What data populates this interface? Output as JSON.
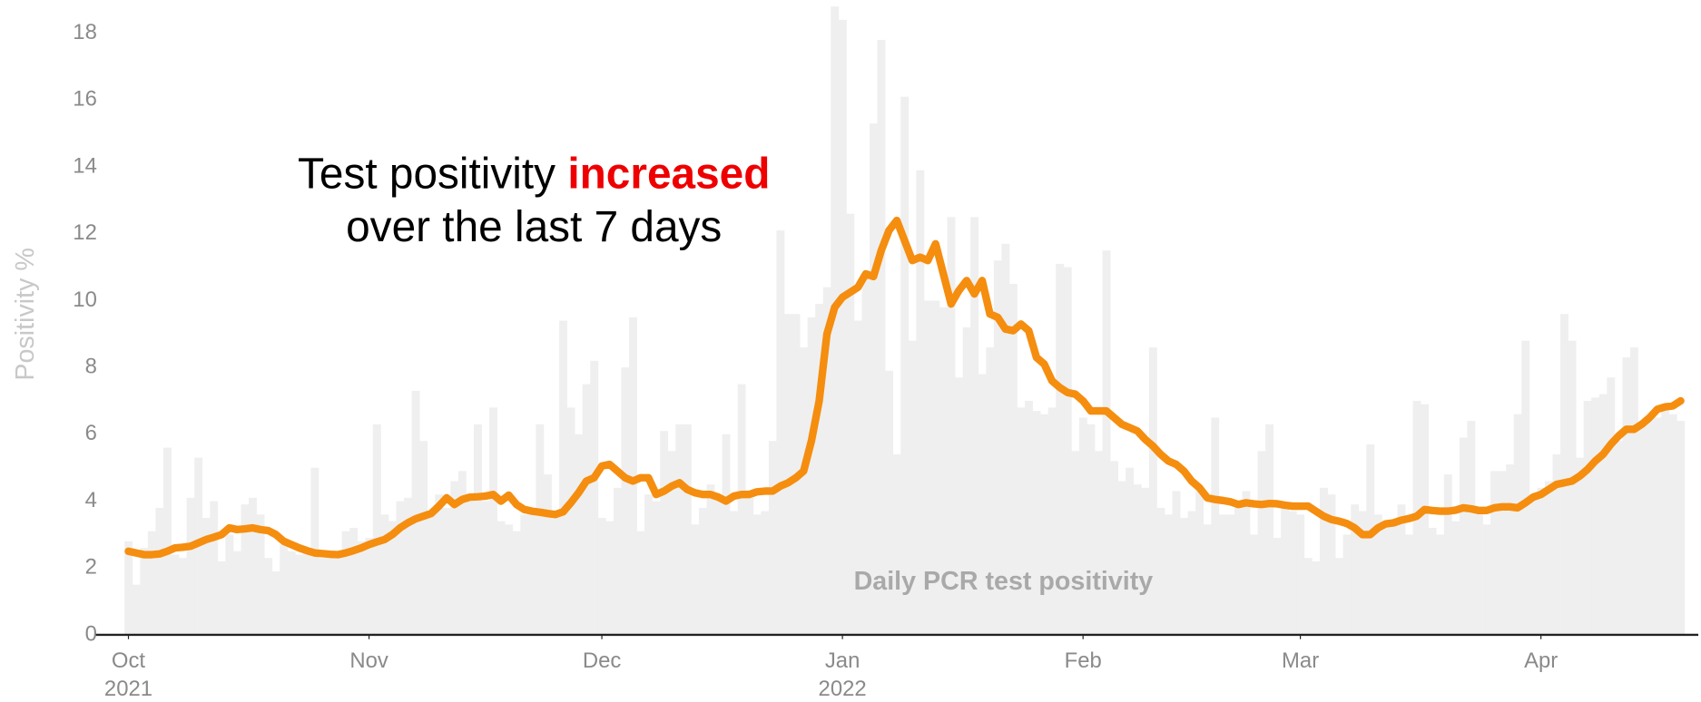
{
  "chart_data": {
    "type": "bar-line",
    "ylabel": "Positivity %",
    "annotation": {
      "line1": "Test positivity",
      "highlight": "increased",
      "line2": "over the last 7 days"
    },
    "x": [
      0,
      1,
      2,
      3,
      4,
      5,
      6,
      7,
      8,
      9,
      10,
      11,
      12,
      13,
      14,
      15,
      16,
      17,
      18,
      19,
      20,
      21,
      22,
      23,
      24,
      25,
      26,
      27,
      28,
      29,
      30,
      31,
      32,
      33,
      34,
      35,
      36,
      37,
      38,
      39,
      40,
      41,
      42,
      43,
      44,
      45,
      46,
      47,
      48,
      49,
      50,
      51,
      52,
      53,
      54,
      55,
      56,
      57,
      58,
      59,
      60,
      61,
      62,
      63,
      64,
      65,
      66,
      67,
      68,
      69,
      70,
      71,
      72,
      73,
      74,
      75,
      76,
      77,
      78,
      79,
      80,
      81,
      82,
      83,
      84,
      85,
      86,
      87,
      88,
      89,
      90,
      91,
      92,
      93,
      94,
      95,
      96,
      97,
      98,
      99,
      100,
      101,
      102,
      103,
      104,
      105,
      106,
      107,
      108,
      109,
      110,
      111,
      112,
      113,
      114,
      115,
      116,
      117,
      118,
      119,
      120,
      121,
      122,
      123,
      124,
      125,
      126,
      127,
      128,
      129,
      130,
      131,
      132,
      133,
      134,
      135,
      136,
      137,
      138,
      139,
      140,
      141,
      142,
      143,
      144,
      145,
      146,
      147,
      148,
      149,
      150,
      151,
      152,
      153,
      154,
      155,
      156,
      157,
      158,
      159,
      160,
      161,
      162,
      163,
      164,
      165,
      166,
      167,
      168,
      169,
      170,
      171,
      172,
      173,
      174,
      175,
      176,
      177,
      178,
      179,
      180,
      181,
      182,
      183,
      184,
      185,
      186,
      187,
      188,
      189,
      190,
      191,
      192,
      193,
      194,
      195,
      196,
      197,
      198,
      199,
      200
    ],
    "series": [
      {
        "name": "Daily PCR test positivity",
        "kind": "bar",
        "color": "#efefef",
        "values": [
          2.8,
          1.5,
          2.6,
          3.1,
          3.8,
          5.6,
          2.4,
          2.3,
          4.1,
          5.3,
          3.5,
          4.0,
          2.2,
          3.0,
          2.5,
          3.9,
          4.1,
          3.6,
          2.3,
          1.9,
          2.7,
          2.5,
          2.4,
          2.6,
          5.0,
          2.3,
          2.3,
          2.5,
          3.1,
          3.2,
          2.8,
          2.9,
          6.3,
          3.6,
          3.4,
          4.0,
          4.1,
          7.3,
          5.8,
          3.6,
          4.2,
          3.8,
          4.6,
          4.9,
          4.1,
          6.3,
          4.0,
          6.8,
          3.4,
          3.3,
          3.1,
          3.6,
          3.8,
          6.3,
          4.8,
          3.6,
          9.4,
          6.8,
          6.0,
          7.5,
          8.2,
          3.5,
          3.4,
          4.4,
          8.0,
          9.5,
          3.1,
          4.2,
          4.0,
          6.1,
          5.5,
          6.3,
          6.3,
          3.3,
          3.8,
          4.5,
          4.1,
          6.0,
          3.7,
          7.5,
          4.1,
          3.6,
          3.7,
          5.8,
          12.1,
          9.6,
          9.6,
          8.6,
          9.5,
          9.9,
          10.4,
          18.8,
          18.4,
          12.6,
          9.4,
          10.8,
          15.3,
          17.8,
          7.9,
          5.4,
          16.1,
          8.8,
          13.9,
          10.0,
          10.0,
          9.8,
          12.5,
          7.7,
          9.2,
          12.5,
          7.8,
          8.6,
          11.2,
          11.7,
          10.5,
          6.8,
          7.0,
          6.7,
          6.6,
          6.8,
          11.1,
          11.0,
          5.5,
          6.5,
          6.3,
          5.5,
          11.5,
          5.2,
          4.6,
          5.0,
          4.5,
          4.4,
          8.6,
          3.8,
          3.6,
          4.3,
          3.5,
          3.7,
          4.4,
          3.3,
          6.5,
          3.6,
          3.6,
          3.9,
          4.3,
          3.0,
          5.5,
          6.3,
          2.9,
          3.9,
          3.7,
          3.6,
          2.3,
          2.2,
          4.4,
          4.2,
          2.3,
          3.0,
          3.9,
          3.7,
          5.7,
          3.6,
          3.3,
          3.4,
          3.9,
          3.0,
          7.0,
          6.9,
          3.2,
          3.0,
          4.8,
          3.4,
          5.9,
          6.4,
          3.8,
          3.3,
          4.9,
          4.9,
          5.1,
          6.6,
          8.8,
          4.1,
          4.4,
          4.6,
          5.4,
          9.6,
          8.8,
          5.3,
          7.0,
          7.1,
          7.2,
          7.7,
          5.8,
          8.3,
          8.6,
          6.4,
          6.4,
          6.5,
          6.8,
          6.6,
          6.4
        ]
      },
      {
        "kind": "line",
        "color": "#f58d0f",
        "values": [
          2.5,
          2.45,
          2.4,
          2.4,
          2.42,
          2.5,
          2.6,
          2.62,
          2.65,
          2.75,
          2.85,
          2.92,
          3.0,
          3.2,
          3.15,
          3.17,
          3.2,
          3.15,
          3.12,
          3.0,
          2.8,
          2.7,
          2.6,
          2.52,
          2.45,
          2.43,
          2.41,
          2.4,
          2.45,
          2.52,
          2.6,
          2.7,
          2.78,
          2.85,
          3.0,
          3.2,
          3.35,
          3.47,
          3.55,
          3.63,
          3.85,
          4.1,
          3.9,
          4.05,
          4.12,
          4.13,
          4.15,
          4.2,
          4.0,
          4.18,
          3.9,
          3.75,
          3.7,
          3.67,
          3.63,
          3.6,
          3.68,
          3.95,
          4.25,
          4.6,
          4.7,
          5.05,
          5.1,
          4.9,
          4.7,
          4.6,
          4.7,
          4.7,
          4.2,
          4.3,
          4.45,
          4.55,
          4.35,
          4.25,
          4.2,
          4.2,
          4.12,
          4.0,
          4.15,
          4.2,
          4.2,
          4.28,
          4.3,
          4.3,
          4.45,
          4.55,
          4.7,
          4.9,
          5.8,
          7.0,
          9.0,
          9.8,
          10.1,
          10.25,
          10.4,
          10.8,
          10.72,
          11.5,
          12.1,
          12.4,
          11.8,
          11.2,
          11.3,
          11.2,
          11.7,
          10.8,
          9.9,
          10.3,
          10.6,
          10.2,
          10.6,
          9.6,
          9.5,
          9.15,
          9.1,
          9.3,
          9.1,
          8.3,
          8.1,
          7.6,
          7.4,
          7.25,
          7.2,
          7.0,
          6.7,
          6.7,
          6.7,
          6.5,
          6.3,
          6.2,
          6.1,
          5.85,
          5.65,
          5.4,
          5.2,
          5.1,
          4.9,
          4.6,
          4.4,
          4.1,
          4.05,
          4.02,
          3.98,
          3.9,
          3.95,
          3.92,
          3.9,
          3.93,
          3.92,
          3.88,
          3.85,
          3.85,
          3.85,
          3.7,
          3.55,
          3.45,
          3.4,
          3.33,
          3.2,
          3.0,
          3.0,
          3.2,
          3.32,
          3.35,
          3.43,
          3.48,
          3.55,
          3.75,
          3.72,
          3.7,
          3.7,
          3.73,
          3.8,
          3.77,
          3.72,
          3.72,
          3.8,
          3.83,
          3.83,
          3.8,
          3.95,
          4.12,
          4.2,
          4.35,
          4.5,
          4.55,
          4.6,
          4.75,
          4.95,
          5.2,
          5.4,
          5.7,
          5.95,
          6.15,
          6.15,
          6.3,
          6.5,
          6.75,
          6.82,
          6.85,
          7.0
        ]
      }
    ],
    "xlim": [
      0,
      202
    ],
    "xticks": [
      {
        "value": 0,
        "label": "Oct"
      },
      {
        "value": 31,
        "label": "Nov"
      },
      {
        "value": 61,
        "label": "Dec"
      },
      {
        "value": 92,
        "label": "Jan"
      },
      {
        "value": 123,
        "label": "Feb"
      },
      {
        "value": 151,
        "label": "Mar"
      },
      {
        "value": 182,
        "label": "Apr"
      }
    ],
    "xticks_year": [
      {
        "value": 0,
        "label": "2021"
      },
      {
        "value": 92,
        "label": "2022"
      }
    ],
    "ylim": [
      0,
      18.8
    ],
    "yticks": [
      0,
      2,
      4,
      6,
      8,
      10,
      12,
      14,
      16,
      18
    ],
    "grid": false
  }
}
